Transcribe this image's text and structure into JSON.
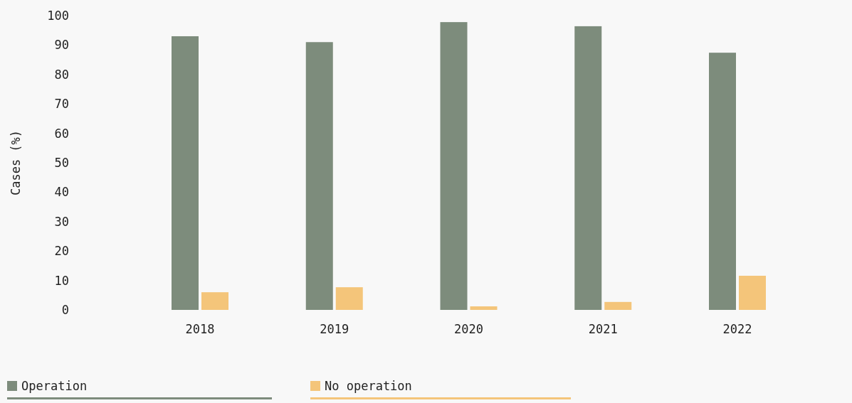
{
  "chart_data": {
    "type": "bar",
    "ylabel": "Cases (%)",
    "categories": [
      "2018",
      "2019",
      "2020",
      "2021",
      "2022"
    ],
    "series": [
      {
        "name": "Operation",
        "color": "#7d8c7c",
        "values": [
          93,
          91,
          97.8,
          96.4,
          87.4
        ]
      },
      {
        "name": "No operation",
        "color": "#f4c57a",
        "values": [
          6,
          7.7,
          1.2,
          2.7,
          11.6
        ]
      }
    ],
    "ylim": [
      0,
      100
    ],
    "yticks": [
      0,
      10,
      20,
      30,
      40,
      50,
      60,
      70,
      80,
      90,
      100
    ],
    "grid": false,
    "legend": "bottom"
  }
}
